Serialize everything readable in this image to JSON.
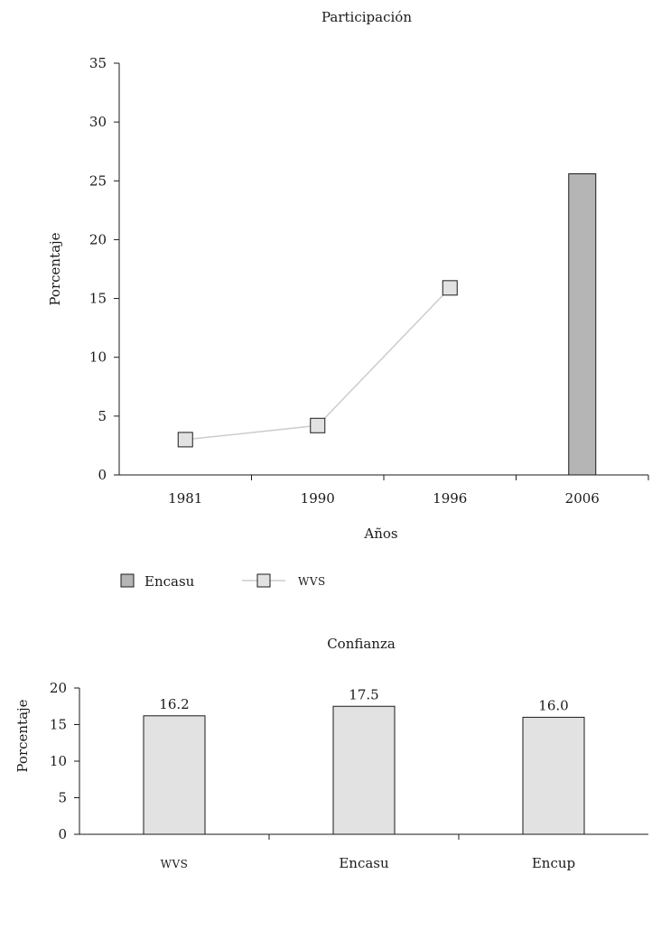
{
  "chart_data": [
    {
      "type": "bar+line",
      "title": "Participación",
      "xlabel": "Años",
      "ylabel": "Porcentaje",
      "ylim": [
        0,
        35
      ],
      "yticks": [
        0,
        5,
        10,
        15,
        20,
        25,
        30,
        35
      ],
      "categories": [
        "1981",
        "1990",
        "1996",
        "2006"
      ],
      "series": [
        {
          "name": "Encasu",
          "kind": "bar",
          "color": "#b5b5b5",
          "points": [
            {
              "category": "2006",
              "value": 25.6
            }
          ]
        },
        {
          "name": "WVS",
          "kind": "line",
          "color": "#e2e2e2",
          "points": [
            {
              "category": "1981",
              "value": 3.0
            },
            {
              "category": "1990",
              "value": 4.2
            },
            {
              "category": "1996",
              "value": 15.9
            }
          ]
        }
      ],
      "legend": {
        "placement": "bottom-left",
        "items": [
          {
            "label": "Encasu",
            "kind": "bar"
          },
          {
            "label": "WVS",
            "kind": "line"
          }
        ]
      }
    },
    {
      "type": "bar",
      "title": "Confianza",
      "ylabel": "Porcentaje",
      "xlabel": "",
      "ylim": [
        0,
        20
      ],
      "yticks": [
        0,
        5,
        10,
        15,
        20
      ],
      "categories": [
        "WVS",
        "Encasu",
        "Encup"
      ],
      "values": [
        16.2,
        17.5,
        16.0
      ],
      "value_labels": [
        "16.2",
        "17.5",
        "16.0"
      ],
      "color": "#e2e2e2"
    }
  ]
}
